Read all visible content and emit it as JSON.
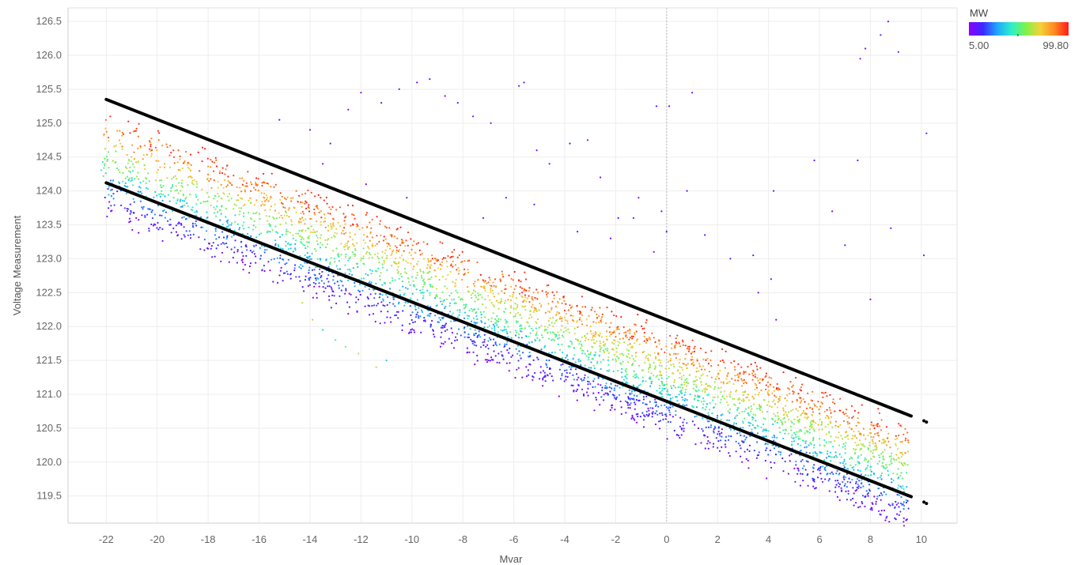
{
  "chart_data": {
    "type": "scatter",
    "title": "",
    "xlabel": "Mvar",
    "ylabel": "Voltage Measurement",
    "xlim": [
      -23.5,
      11.4
    ],
    "ylim": [
      119.1,
      126.7
    ],
    "x_ticks": [
      -22,
      -20,
      -18,
      -16,
      -14,
      -12,
      -10,
      -8,
      -6,
      -4,
      -2,
      0,
      2,
      4,
      6,
      8,
      10
    ],
    "y_ticks": [
      119.5,
      120.0,
      120.5,
      121.0,
      121.5,
      122.0,
      122.5,
      123.0,
      123.5,
      124.0,
      124.5,
      125.0,
      125.5,
      126.0,
      126.5
    ],
    "x_tick_labels": [
      "-22",
      "-20",
      "-18",
      "-16",
      "-14",
      "-12",
      "-10",
      "-8",
      "-6",
      "-4",
      "-2",
      "0",
      "2",
      "4",
      "6",
      "8",
      "10"
    ],
    "y_tick_labels": [
      "119.5",
      "120.0",
      "120.5",
      "121.0",
      "121.5",
      "122.0",
      "122.5",
      "123.0",
      "123.5",
      "124.0",
      "124.5",
      "125.0",
      "125.5",
      "126.0",
      "126.5"
    ],
    "grid": true,
    "zero_line": true,
    "color_legend": {
      "title": "MW",
      "min": 5.0,
      "max": 99.8,
      "min_label": "5.00",
      "max_label": "99.80",
      "colors": [
        "#8a00ff",
        "#3a2bff",
        "#1fa8ff",
        "#2cf0c8",
        "#7ff24a",
        "#f4d23a",
        "#ff8a20",
        "#ff1a1a"
      ],
      "placement": "top-right"
    },
    "band": {
      "description_units": "Voltage Measurement vs Mvar",
      "slope": -0.1455,
      "center_intercept": 121.18,
      "half_width_low": 1.0,
      "x_range": [
        -22.2,
        9.5
      ],
      "mw_gradient_across_band": "low MW near lower edge, high MW near upper edge"
    },
    "series": [
      {
        "kind": "line",
        "points": [
          [
            -22,
            125.35
          ],
          [
            9.6,
            120.68
          ]
        ],
        "color": "#000000"
      },
      {
        "kind": "line",
        "points": [
          [
            -22,
            124.12
          ],
          [
            9.6,
            119.49
          ]
        ],
        "color": "#000000"
      },
      {
        "kind": "points",
        "points": [
          [
            10.1,
            120.61
          ],
          [
            10.2,
            120.59
          ]
        ],
        "color": "#000000"
      },
      {
        "kind": "points",
        "points": [
          [
            10.1,
            119.41
          ],
          [
            10.2,
            119.39
          ]
        ],
        "color": "#000000"
      }
    ],
    "outliers": [
      [
        -15.2,
        125.05
      ],
      [
        -14.0,
        124.9
      ],
      [
        -13.2,
        124.7
      ],
      [
        -12.5,
        125.2
      ],
      [
        -12.0,
        125.45
      ],
      [
        -11.2,
        125.3
      ],
      [
        -10.5,
        125.5
      ],
      [
        -9.8,
        125.6
      ],
      [
        -9.3,
        125.65
      ],
      [
        -8.7,
        125.4
      ],
      [
        -8.2,
        125.3
      ],
      [
        -7.6,
        125.1
      ],
      [
        -6.9,
        125.0
      ],
      [
        -5.8,
        125.55
      ],
      [
        -5.6,
        125.6
      ],
      [
        -5.1,
        124.6
      ],
      [
        -4.6,
        124.4
      ],
      [
        -3.8,
        124.7
      ],
      [
        -3.1,
        124.75
      ],
      [
        -2.6,
        124.2
      ],
      [
        -1.9,
        123.6
      ],
      [
        -1.1,
        123.9
      ],
      [
        -0.4,
        125.25
      ],
      [
        0.1,
        125.25
      ],
      [
        1.0,
        125.45
      ],
      [
        0.8,
        124.0
      ],
      [
        0.0,
        123.4
      ],
      [
        -0.5,
        123.1
      ],
      [
        3.4,
        123.05
      ],
      [
        4.2,
        124.0
      ],
      [
        4.3,
        122.1
      ],
      [
        4.1,
        122.7
      ],
      [
        5.8,
        124.45
      ],
      [
        6.5,
        123.7
      ],
      [
        7.0,
        123.2
      ],
      [
        7.5,
        124.45
      ],
      [
        7.6,
        125.95
      ],
      [
        7.8,
        126.1
      ],
      [
        8.4,
        126.3
      ],
      [
        8.7,
        126.5
      ],
      [
        9.1,
        126.05
      ],
      [
        8.8,
        123.45
      ],
      [
        8.0,
        122.4
      ],
      [
        10.2,
        124.85
      ],
      [
        10.1,
        123.05
      ],
      [
        -13.5,
        124.4
      ],
      [
        -11.8,
        124.1
      ],
      [
        -10.2,
        123.9
      ],
      [
        -7.2,
        123.6
      ],
      [
        -6.3,
        123.9
      ],
      [
        -5.2,
        123.8
      ],
      [
        -3.5,
        123.4
      ],
      [
        -2.2,
        123.3
      ],
      [
        -1.3,
        123.6
      ],
      [
        -0.2,
        123.7
      ],
      [
        1.5,
        123.35
      ],
      [
        2.5,
        123.0
      ],
      [
        3.6,
        122.5
      ],
      [
        -14.3,
        122.35
      ],
      [
        -13.9,
        122.1
      ],
      [
        -13.5,
        121.95
      ],
      [
        -13.0,
        121.8
      ],
      [
        -12.6,
        121.7
      ],
      [
        -12.1,
        121.6
      ],
      [
        -11.4,
        121.4
      ],
      [
        -11.0,
        121.5
      ],
      [
        -7.1,
        121.7
      ],
      [
        -6.6,
        121.6
      ],
      [
        -6.1,
        121.55
      ]
    ]
  }
}
